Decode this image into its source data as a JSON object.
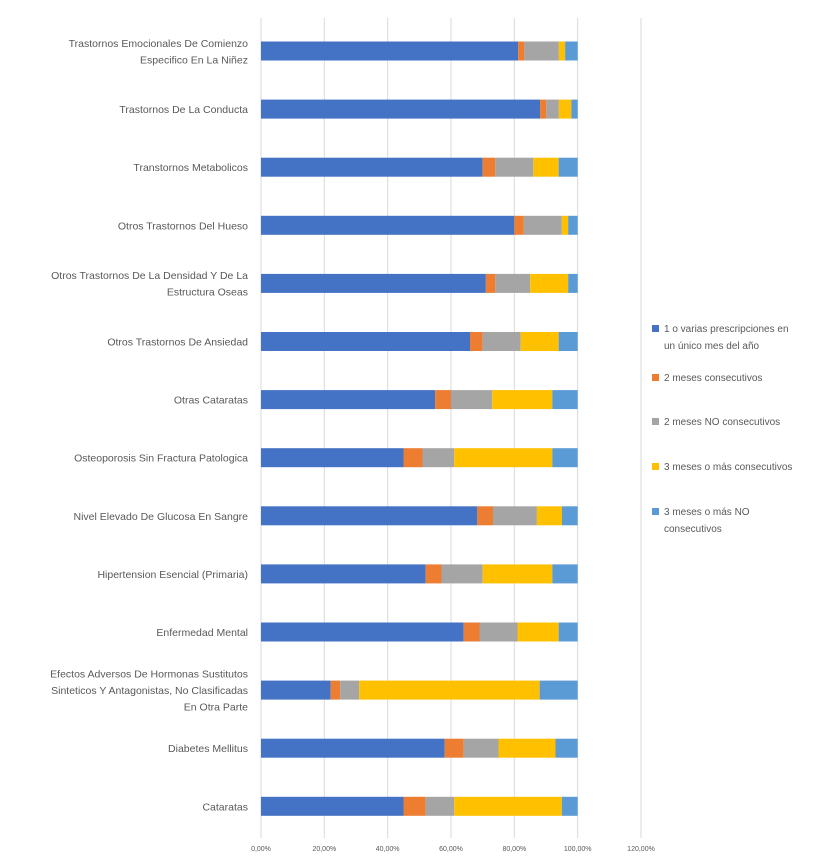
{
  "chart_data": {
    "type": "bar",
    "orientation": "horizontal",
    "stacked": "percent",
    "categories": [
      "Trastornos Emocionales De Comienzo Especifico En La Niñez",
      "Trastornos De La Conducta",
      "Transtornos Metabolicos",
      "Otros Trastornos Del Hueso",
      "Otros Trastornos De La Densidad Y De La Estructura Oseas",
      "Otros Trastornos De Ansiedad",
      "Otras Cataratas",
      "Osteoporosis Sin Fractura Patologica",
      "Nivel Elevado De Glucosa En Sangre",
      "Hipertension Esencial (Primaria)",
      "Enfermedad Mental",
      "Efectos Adversos De Hormonas Sustitutos Sinteticos Y Antagonistas, No Clasificadas En Otra Parte",
      "Diabetes Mellitus",
      "Cataratas"
    ],
    "category_lines": [
      [
        "Trastornos Emocionales De Comienzo",
        "Especifico En La Niñez"
      ],
      [
        "Trastornos De La Conducta"
      ],
      [
        "Transtornos Metabolicos"
      ],
      [
        "Otros Trastornos Del Hueso"
      ],
      [
        "Otros Trastornos De La Densidad Y De La",
        "Estructura Oseas"
      ],
      [
        "Otros Trastornos De Ansiedad"
      ],
      [
        "Otras Cataratas"
      ],
      [
        "Osteoporosis Sin Fractura Patologica"
      ],
      [
        "Nivel Elevado De Glucosa En Sangre"
      ],
      [
        "Hipertension Esencial (Primaria)"
      ],
      [
        "Enfermedad Mental"
      ],
      [
        "Efectos Adversos De Hormonas Sustitutos",
        "Sinteticos Y Antagonistas, No Clasificadas",
        "En Otra Parte"
      ],
      [
        "Diabetes Mellitus"
      ],
      [
        "Cataratas"
      ]
    ],
    "series": [
      {
        "name": "1 o varias prescripciones en un único mes del año",
        "color": "#4472C4",
        "values": [
          82,
          89,
          70,
          80,
          71,
          66,
          55,
          45,
          69,
          52,
          64,
          22,
          58,
          45
        ]
      },
      {
        "name": "2 meses consecutivos",
        "color": "#ED7D31",
        "values": [
          2,
          2,
          4,
          3,
          3,
          4,
          5,
          6,
          5,
          5,
          5,
          3,
          6,
          7
        ]
      },
      {
        "name": "2 meses NO consecutivos",
        "color": "#A5A5A5",
        "values": [
          11,
          4,
          12,
          12,
          11,
          12,
          13,
          10,
          14,
          13,
          12,
          6,
          11,
          9
        ]
      },
      {
        "name": "3 meses o más consecutivos",
        "color": "#FFC000",
        "values": [
          2,
          4,
          8,
          2,
          12,
          12,
          19,
          31,
          8,
          22,
          13,
          57,
          18,
          34
        ]
      },
      {
        "name": "3 meses o más NO consecutivos",
        "color": "#5B9BD5",
        "values": [
          4,
          2,
          6,
          3,
          3,
          6,
          8,
          8,
          5,
          8,
          6,
          12,
          7,
          5
        ]
      }
    ],
    "legend_lines": [
      [
        "1 o varias prescripciones en",
        "un único mes del año"
      ],
      [
        "2 meses consecutivos"
      ],
      [
        "2 meses NO consecutivos"
      ],
      [
        "3 meses o más consecutivos"
      ],
      [
        "3 meses o más NO",
        "consecutivos"
      ]
    ],
    "x_ticks": [
      "0,00%",
      "20,00%",
      "40,00%",
      "60,00%",
      "80,00%",
      "100,00%",
      "120,00%"
    ],
    "xlim": [
      0,
      120
    ],
    "legend_position": "right",
    "grid": "vertical major gridlines",
    "title": "",
    "xlabel": "",
    "ylabel": ""
  }
}
